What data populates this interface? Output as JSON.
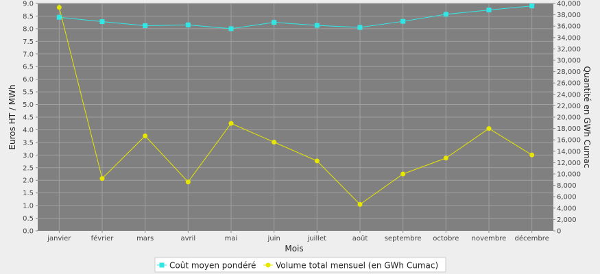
{
  "chart_data": {
    "type": "line",
    "xlabel": "Mois",
    "ylabel_left": "Euros HT / MWh",
    "ylabel_right": "Quantité en GWh Cumac",
    "categories": [
      "janvier",
      "février",
      "mars",
      "avril",
      "mai",
      "juin",
      "juillet",
      "août",
      "septembre",
      "octobre",
      "novembre",
      "décembre"
    ],
    "y_left": {
      "min": 0,
      "max": 9.0,
      "step": 0.5,
      "ticks": [
        "0.0",
        "0.5",
        "1.0",
        "1.5",
        "2.0",
        "2.5",
        "3.0",
        "3.5",
        "4.0",
        "4.5",
        "5.0",
        "5.5",
        "6.0",
        "6.5",
        "7.0",
        "7.5",
        "8.0",
        "8.5",
        "9.0"
      ]
    },
    "y_right": {
      "min": 0,
      "max": 40000,
      "step": 2000,
      "ticks": [
        "0",
        "2,000",
        "4,000",
        "6,000",
        "8,000",
        "10,000",
        "12,000",
        "14,000",
        "16,000",
        "18,000",
        "20,000",
        "22,000",
        "24,000",
        "26,000",
        "28,000",
        "30,000",
        "32,000",
        "34,000",
        "36,000",
        "38,000",
        "40,000"
      ]
    },
    "grid": true,
    "legend_position": "bottom",
    "series": [
      {
        "name": "Coût moyen pondéré",
        "axis": "left",
        "color": "#33e6e6",
        "marker": "square",
        "values": [
          8.45,
          8.28,
          8.12,
          8.15,
          8.0,
          8.25,
          8.13,
          8.05,
          8.29,
          8.57,
          8.74,
          8.9
        ]
      },
      {
        "name": "Volume total mensuel (en GWh Cumac)",
        "axis": "right",
        "color": "#e6e600",
        "marker": "circle",
        "values": [
          39300,
          9200,
          16700,
          8600,
          18900,
          15600,
          12300,
          4650,
          10000,
          12800,
          18000,
          13350
        ]
      }
    ]
  },
  "colors": {
    "plot_background": "#808080",
    "gridline": "#a0a0a0",
    "page_background": "#eeeeee"
  }
}
